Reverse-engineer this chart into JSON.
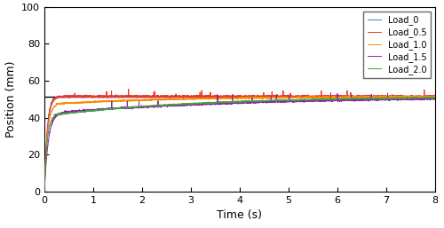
{
  "title": "",
  "xlabel": "Time (s)",
  "ylabel": "Position (mm)",
  "xlim": [
    0,
    8
  ],
  "ylim": [
    0,
    100
  ],
  "xticks": [
    0,
    1,
    2,
    3,
    4,
    5,
    6,
    7,
    8
  ],
  "yticks": [
    0,
    20,
    40,
    60,
    80,
    100
  ],
  "setpoint": 51.5,
  "setpoint_color": "#000000",
  "legend_labels": [
    "Load_0",
    "Load_0.5",
    "Load_1.0",
    "Load_1.5",
    "Load_2.0"
  ],
  "line_colors": [
    "#1E88E5",
    "#E53935",
    "#FB8C00",
    "#8E24AA",
    "#43A047"
  ],
  "background_color": "#ffffff",
  "figsize": [
    5.0,
    2.57
  ],
  "dpi": 100,
  "legend_fontsize": 7.0,
  "axis_label_fontsize": 9,
  "tick_fontsize": 8
}
